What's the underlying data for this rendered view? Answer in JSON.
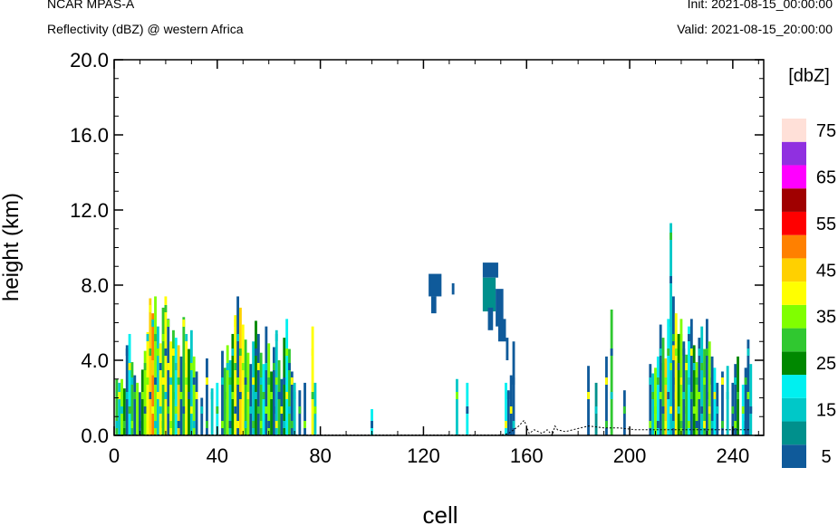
{
  "header": {
    "model": "NCAR MPAS-A",
    "field": "Reflectivity (dBZ) @ western Africa",
    "init": "Init: 2021-08-15_00:00:00",
    "valid": "Valid: 2021-08-15_20:00:00"
  },
  "colorbar": {
    "title": "[dbZ]",
    "labels": [
      "5",
      "15",
      "25",
      "35",
      "45",
      "55",
      "65",
      "75"
    ],
    "colors": [
      "#0f5a9a",
      "#00908c",
      "#00c8c8",
      "#00f0f0",
      "#008800",
      "#30c830",
      "#80ff00",
      "#ffff00",
      "#ffd000",
      "#ff8000",
      "#ff0000",
      "#a00000",
      "#ff00ff",
      "#9030e0",
      "#ffe0d8"
    ]
  },
  "chart_data": {
    "type": "heatmap",
    "xlabel": "cell",
    "ylabel": "height (km)",
    "xlim": [
      0,
      252
    ],
    "ylim": [
      0,
      20
    ],
    "xticks": [
      0,
      40,
      80,
      120,
      160,
      200,
      240
    ],
    "yticks": [
      "0.0",
      "4.0",
      "8.0",
      "12.0",
      "16.0",
      "20.0"
    ],
    "columns": [
      {
        "x": 1,
        "top": 3.0,
        "c": "#30c830"
      },
      {
        "x": 2,
        "top": 2.8,
        "c": "#00c8c8"
      },
      {
        "x": 3,
        "top": 3.0,
        "c": "#80ff00"
      },
      {
        "x": 4,
        "top": 2.5,
        "c": "#008800"
      },
      {
        "x": 5,
        "top": 4.8,
        "c": "#0f5a9a"
      },
      {
        "x": 6,
        "top": 5.4,
        "c": "#00f0f0"
      },
      {
        "x": 7,
        "top": 3.9,
        "c": "#30c830"
      },
      {
        "x": 8,
        "top": 3.2,
        "c": "#0f5a9a"
      },
      {
        "x": 9,
        "top": 2.8,
        "c": "#80ff00"
      },
      {
        "x": 10,
        "top": 2.3,
        "c": "#0f5a9a"
      },
      {
        "x": 11,
        "top": 3.5,
        "c": "#008800"
      },
      {
        "x": 12,
        "top": 4.5,
        "c": "#80ff00"
      },
      {
        "x": 13,
        "top": 5.5,
        "c": "#ffff00"
      },
      {
        "x": 14,
        "top": 7.3,
        "c": "#ffd000"
      },
      {
        "x": 15,
        "top": 6.5,
        "c": "#ff8000"
      },
      {
        "x": 16,
        "top": 7.4,
        "c": "#80ff00"
      },
      {
        "x": 17,
        "top": 5.8,
        "c": "#00c8c8"
      },
      {
        "x": 18,
        "top": 4.9,
        "c": "#ffff00"
      },
      {
        "x": 19,
        "top": 6.8,
        "c": "#30c830"
      },
      {
        "x": 20,
        "top": 7.4,
        "c": "#ffff00"
      },
      {
        "x": 21,
        "top": 6.2,
        "c": "#0f5a9a"
      },
      {
        "x": 22,
        "top": 5.0,
        "c": "#ffff00"
      },
      {
        "x": 23,
        "top": 5.6,
        "c": "#30c830"
      },
      {
        "x": 24,
        "top": 5.2,
        "c": "#00f0f0"
      },
      {
        "x": 25,
        "top": 4.8,
        "c": "#ffd000"
      },
      {
        "x": 26,
        "top": 4.2,
        "c": "#0f5a9a"
      },
      {
        "x": 27,
        "top": 6.3,
        "c": "#30c830"
      },
      {
        "x": 28,
        "top": 5.4,
        "c": "#ffff00"
      },
      {
        "x": 29,
        "top": 4.6,
        "c": "#008800"
      },
      {
        "x": 30,
        "top": 5.6,
        "c": "#00c8c8"
      },
      {
        "x": 31,
        "top": 4.2,
        "c": "#80ff00"
      },
      {
        "x": 32,
        "top": 3.4,
        "c": "#0f5a9a"
      },
      {
        "x": 34,
        "top": 2.0,
        "c": "#0f5a9a"
      },
      {
        "x": 36,
        "top": 4.1,
        "c": "#0f5a9a"
      },
      {
        "x": 38,
        "top": 2.5,
        "c": "#00c8c8"
      },
      {
        "x": 40,
        "top": 2.8,
        "c": "#00f0f0"
      },
      {
        "x": 42,
        "top": 4.5,
        "c": "#0f5a9a"
      },
      {
        "x": 43,
        "top": 3.6,
        "c": "#30c830"
      },
      {
        "x": 44,
        "top": 4.8,
        "c": "#80ff00"
      },
      {
        "x": 45,
        "top": 4.0,
        "c": "#00c8c8"
      },
      {
        "x": 46,
        "top": 5.4,
        "c": "#008800"
      },
      {
        "x": 47,
        "top": 6.4,
        "c": "#ffff00"
      },
      {
        "x": 48,
        "top": 7.4,
        "c": "#0f5a9a"
      },
      {
        "x": 49,
        "top": 6.8,
        "c": "#ffd000"
      },
      {
        "x": 50,
        "top": 5.9,
        "c": "#ffff00"
      },
      {
        "x": 51,
        "top": 5.1,
        "c": "#30c830"
      },
      {
        "x": 52,
        "top": 4.4,
        "c": "#80ff00"
      },
      {
        "x": 53,
        "top": 3.8,
        "c": "#0f5a9a"
      },
      {
        "x": 54,
        "top": 5.0,
        "c": "#00c8c8"
      },
      {
        "x": 55,
        "top": 6.1,
        "c": "#008800"
      },
      {
        "x": 56,
        "top": 5.4,
        "c": "#0f5a9a"
      },
      {
        "x": 57,
        "top": 4.4,
        "c": "#30c830"
      },
      {
        "x": 58,
        "top": 3.8,
        "c": "#00f0f0"
      },
      {
        "x": 59,
        "top": 5.8,
        "c": "#0f5a9a"
      },
      {
        "x": 60,
        "top": 4.9,
        "c": "#80ff00"
      },
      {
        "x": 61,
        "top": 3.4,
        "c": "#008800"
      },
      {
        "x": 62,
        "top": 4.7,
        "c": "#0f5a9a"
      },
      {
        "x": 63,
        "top": 5.6,
        "c": "#00c8c8"
      },
      {
        "x": 64,
        "top": 4.0,
        "c": "#30c830"
      },
      {
        "x": 65,
        "top": 3.0,
        "c": "#0f5a9a"
      },
      {
        "x": 66,
        "top": 5.2,
        "c": "#008800"
      },
      {
        "x": 67,
        "top": 6.2,
        "c": "#00f0f0"
      },
      {
        "x": 68,
        "top": 4.6,
        "c": "#30c830"
      },
      {
        "x": 69,
        "top": 3.4,
        "c": "#0f5a9a"
      },
      {
        "x": 70,
        "top": 2.8,
        "c": "#00c8c8"
      },
      {
        "x": 72,
        "top": 2.4,
        "c": "#0f5a9a"
      },
      {
        "x": 74,
        "top": 2.8,
        "c": "#0f5a9a"
      },
      {
        "x": 77,
        "top": 5.8,
        "c": "#ffff00"
      },
      {
        "x": 78,
        "top": 2.8,
        "c": "#00c8c8"
      },
      {
        "x": 100,
        "top": 1.4,
        "c": "#00f0f0"
      },
      {
        "x": 133,
        "top": 3.0,
        "c": "#00c8c8"
      },
      {
        "x": 137,
        "top": 2.8,
        "c": "#00f0f0"
      },
      {
        "x": 152,
        "top": 2.8,
        "c": "#00f0f0"
      },
      {
        "x": 153,
        "top": 2.4,
        "c": "#0f5a9a"
      },
      {
        "x": 154,
        "top": 3.2,
        "c": "#0f5a9a"
      },
      {
        "x": 155,
        "top": 5.0,
        "c": "#0f5a9a"
      },
      {
        "x": 184,
        "top": 3.7,
        "c": "#0f5a9a"
      },
      {
        "x": 187,
        "top": 2.8,
        "c": "#00908c"
      },
      {
        "x": 191,
        "top": 4.2,
        "c": "#0f5a9a"
      },
      {
        "x": 193,
        "top": 6.7,
        "c": "#30c830"
      },
      {
        "x": 198,
        "top": 2.4,
        "c": "#0f5a9a"
      },
      {
        "x": 208,
        "top": 3.8,
        "c": "#0f5a9a"
      },
      {
        "x": 209,
        "top": 3.3,
        "c": "#00c8c8"
      },
      {
        "x": 210,
        "top": 3.6,
        "c": "#80ff00"
      },
      {
        "x": 211,
        "top": 4.2,
        "c": "#00f0f0"
      },
      {
        "x": 212,
        "top": 5.9,
        "c": "#0f5a9a"
      },
      {
        "x": 213,
        "top": 5.2,
        "c": "#30c830"
      },
      {
        "x": 214,
        "top": 4.1,
        "c": "#ffd000"
      },
      {
        "x": 215,
        "top": 6.2,
        "c": "#00f0f0"
      },
      {
        "x": 216,
        "top": 11.3,
        "c": "#00c8c8"
      },
      {
        "x": 217,
        "top": 7.4,
        "c": "#0f5a9a"
      },
      {
        "x": 218,
        "top": 6.5,
        "c": "#ffff00"
      },
      {
        "x": 219,
        "top": 5.4,
        "c": "#008800"
      },
      {
        "x": 220,
        "top": 6.2,
        "c": "#80ff00"
      },
      {
        "x": 221,
        "top": 5.0,
        "c": "#0f5a9a"
      },
      {
        "x": 222,
        "top": 4.3,
        "c": "#30c830"
      },
      {
        "x": 223,
        "top": 5.8,
        "c": "#00f0f0"
      },
      {
        "x": 224,
        "top": 6.2,
        "c": "#0f5a9a"
      },
      {
        "x": 225,
        "top": 4.8,
        "c": "#008800"
      },
      {
        "x": 226,
        "top": 3.9,
        "c": "#80ff00"
      },
      {
        "x": 227,
        "top": 5.2,
        "c": "#0f5a9a"
      },
      {
        "x": 228,
        "top": 5.8,
        "c": "#00c8c8"
      },
      {
        "x": 229,
        "top": 4.6,
        "c": "#30c830"
      },
      {
        "x": 230,
        "top": 6.2,
        "c": "#0f5a9a"
      },
      {
        "x": 231,
        "top": 5.0,
        "c": "#80ff00"
      },
      {
        "x": 232,
        "top": 4.2,
        "c": "#0f5a9a"
      },
      {
        "x": 233,
        "top": 3.6,
        "c": "#00f0f0"
      },
      {
        "x": 234,
        "top": 2.8,
        "c": "#0f5a9a"
      },
      {
        "x": 236,
        "top": 3.4,
        "c": "#0f5a9a"
      },
      {
        "x": 238,
        "top": 3.7,
        "c": "#00c8c8"
      },
      {
        "x": 240,
        "top": 2.8,
        "c": "#0f5a9a"
      },
      {
        "x": 241,
        "top": 3.8,
        "c": "#0f5a9a"
      },
      {
        "x": 242,
        "top": 4.2,
        "c": "#008800"
      },
      {
        "x": 244,
        "top": 2.7,
        "c": "#00f0f0"
      },
      {
        "x": 245,
        "top": 3.6,
        "c": "#0f5a9a"
      },
      {
        "x": 246,
        "top": 5.1,
        "c": "#0f5a9a"
      },
      {
        "x": 247,
        "top": 3.8,
        "c": "#00c8c8"
      }
    ],
    "blocks": [
      {
        "x0": 122,
        "x1": 127,
        "y0": 7.4,
        "y1": 8.6,
        "c": "#0f5a9a"
      },
      {
        "x0": 123,
        "x1": 125,
        "y0": 6.5,
        "y1": 7.4,
        "c": "#0f5a9a"
      },
      {
        "x0": 131,
        "x1": 132,
        "y0": 7.5,
        "y1": 8.1,
        "c": "#0f5a9a"
      },
      {
        "x0": 143,
        "x1": 149,
        "y0": 8.4,
        "y1": 9.2,
        "c": "#0f5a9a"
      },
      {
        "x0": 143,
        "x1": 148,
        "y0": 6.6,
        "y1": 8.4,
        "c": "#00908c"
      },
      {
        "x0": 145,
        "x1": 147,
        "y0": 5.6,
        "y1": 6.8,
        "c": "#0f5a9a"
      },
      {
        "x0": 148,
        "x1": 151,
        "y0": 5.8,
        "y1": 7.8,
        "c": "#0f5a9a"
      },
      {
        "x0": 149,
        "x1": 152,
        "y0": 5.0,
        "y1": 6.2,
        "c": "#0f5a9a"
      },
      {
        "x0": 152,
        "x1": 153,
        "y0": 4.0,
        "y1": 5.2,
        "c": "#0f5a9a"
      }
    ],
    "cores": [
      {
        "x": 15,
        "y0": 4.0,
        "y1": 4.6,
        "c": "#ff8000"
      },
      {
        "x": 15,
        "y0": 3.2,
        "y1": 4.0,
        "c": "#ffd000"
      },
      {
        "x": 217,
        "y0": 4.0,
        "y1": 4.8,
        "c": "#ffd000"
      }
    ],
    "terrain": [
      [
        0,
        0.02
      ],
      [
        150,
        0.02
      ],
      [
        153,
        0.1
      ],
      [
        155,
        0.3
      ],
      [
        157,
        0.5
      ],
      [
        159,
        0.8
      ],
      [
        160,
        0.5
      ],
      [
        161,
        0.1
      ],
      [
        163,
        0.3
      ],
      [
        166,
        0.1
      ],
      [
        168,
        0.3
      ],
      [
        170,
        0.0
      ],
      [
        171,
        0.5
      ],
      [
        172,
        0.3
      ],
      [
        175,
        0.2
      ],
      [
        178,
        0.3
      ],
      [
        181,
        0.4
      ],
      [
        184,
        0.5
      ],
      [
        190,
        0.4
      ],
      [
        196,
        0.4
      ],
      [
        202,
        0.3
      ],
      [
        210,
        0.3
      ],
      [
        220,
        0.3
      ],
      [
        230,
        0.3
      ],
      [
        240,
        0.3
      ],
      [
        247,
        0.3
      ]
    ]
  }
}
